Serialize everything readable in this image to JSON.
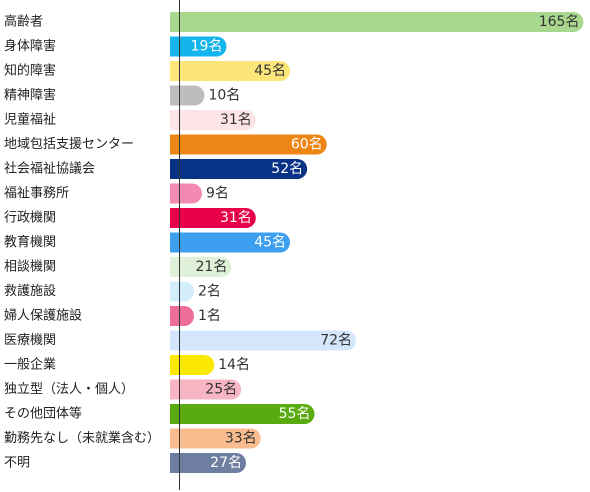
{
  "chart_data": {
    "type": "bar",
    "orientation": "horizontal",
    "title": "",
    "xlabel": "",
    "ylabel": "",
    "unit": "名",
    "categories": [
      "高齢者",
      "身体障害",
      "知的障害",
      "精神障害",
      "児童福祉",
      "地域包括支援センター",
      "社会福祉協議会",
      "福祉事務所",
      "行政機関",
      "教育機関",
      "相談機関",
      "救護施設",
      "婦人保護施設",
      "医療機関",
      "一般企業",
      "独立型（法人・個人）",
      "その他団体等",
      "勤務先なし（未就業含む）",
      "不明"
    ],
    "values": [
      165,
      19,
      45,
      10,
      31,
      60,
      52,
      9,
      31,
      45,
      21,
      2,
      1,
      72,
      14,
      25,
      55,
      33,
      27
    ],
    "value_labels": [
      "165名",
      "19名",
      "45名",
      "10名",
      "31名",
      "60名",
      "52名",
      "9名",
      "31名",
      "45名",
      "21名",
      "2名",
      "1名",
      "72名",
      "14名",
      "25名",
      "55名",
      "33名",
      "27名"
    ],
    "colors": [
      "#a8d88e",
      "#14b4ec",
      "#fde679",
      "#bdbdbd",
      "#fde4e6",
      "#ee8616",
      "#073286",
      "#f28ab3",
      "#e8004a",
      "#3d9ff0",
      "#dff2d9",
      "#d4edfb",
      "#ef6e98",
      "#d3e6fb",
      "#fae800",
      "#f7b5c4",
      "#5aab10",
      "#f9bc8e",
      "#6d7ea1"
    ],
    "label_colors": [
      "#333333",
      "#ffffff",
      "#333333",
      "#ffffff",
      "#333333",
      "#ffffff",
      "#ffffff",
      "#ffffff",
      "#ffffff",
      "#ffffff",
      "#333333",
      "#333333",
      "#333333",
      "#333333",
      "#333333",
      "#333333",
      "#ffffff",
      "#333333",
      "#ffffff"
    ],
    "axis_color": "#333333",
    "grid": false,
    "legend": "none"
  }
}
